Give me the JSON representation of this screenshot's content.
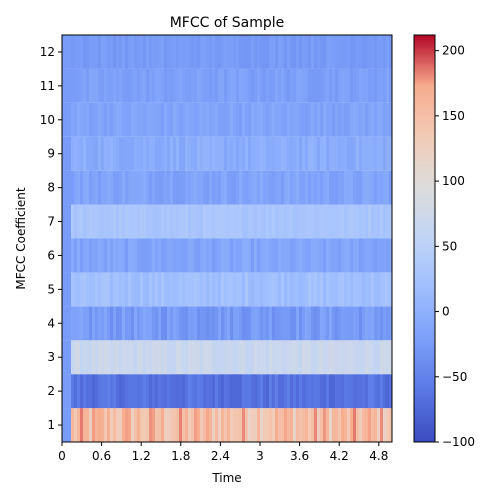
{
  "chart_data": {
    "type": "heatmap",
    "title": "MFCC of Sample",
    "xlabel": "Time",
    "ylabel": "MFCC Coefficient",
    "xlim": [
      0,
      5.0
    ],
    "ylim": [
      0.5,
      12.5
    ],
    "x_ticks": [
      0,
      0.6,
      1.2,
      1.8,
      2.4,
      3,
      3.6,
      4.2,
      4.8
    ],
    "x_tick_labels": [
      "0",
      "0.6",
      "1.2",
      "1.8",
      "2.4",
      "3",
      "3.6",
      "4.2",
      "4.8"
    ],
    "y_ticks": [
      1,
      2,
      3,
      4,
      5,
      6,
      7,
      8,
      9,
      10,
      11,
      12
    ],
    "y_tick_labels": [
      "1",
      "2",
      "3",
      "4",
      "5",
      "6",
      "7",
      "8",
      "9",
      "10",
      "11",
      "12"
    ],
    "colormap": "coolwarm",
    "color_range": [
      -100,
      212
    ],
    "colorbar_ticks": [
      -100,
      -50,
      0,
      50,
      100,
      150,
      200
    ],
    "colorbar_tick_labels": [
      "−100",
      "−50",
      "0",
      "50",
      "100",
      "150",
      "200"
    ],
    "rows": [
      {
        "coefficient": 1,
        "mean": 150,
        "variation": 35
      },
      {
        "coefficient": 2,
        "mean": -65,
        "variation": 12
      },
      {
        "coefficient": 3,
        "mean": 68,
        "variation": 10
      },
      {
        "coefficient": 4,
        "mean": -25,
        "variation": 14
      },
      {
        "coefficient": 5,
        "mean": 20,
        "variation": 10
      },
      {
        "coefficient": 6,
        "mean": -15,
        "variation": 10
      },
      {
        "coefficient": 7,
        "mean": 30,
        "variation": 6
      },
      {
        "coefficient": 8,
        "mean": -15,
        "variation": 10
      },
      {
        "coefficient": 9,
        "mean": -5,
        "variation": 10
      },
      {
        "coefficient": 10,
        "mean": -15,
        "variation": 8
      },
      {
        "coefficient": 11,
        "mean": -20,
        "variation": 8
      },
      {
        "coefficient": 12,
        "mean": -25,
        "variation": 6
      }
    ],
    "onset_time": 0.1,
    "grid": false,
    "legend": "none"
  }
}
